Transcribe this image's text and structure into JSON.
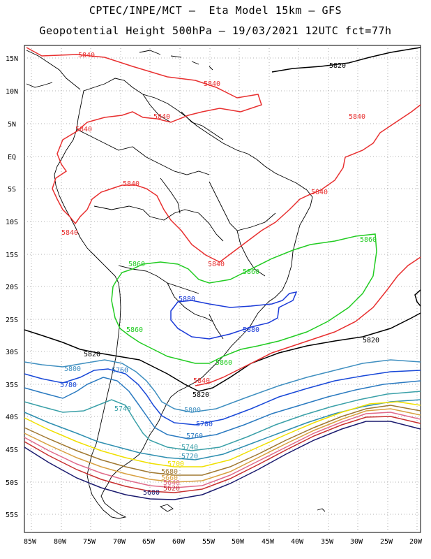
{
  "title_line1": "CPTEC/INPE/MCT –  Eta Model 15km – GFS",
  "title_line2": "Geopotential Height 500hPa – 19/03/2021 12UTC fct=77h",
  "lat_labels": [
    "15N",
    "10N",
    "5N",
    "EQ",
    "5S",
    "10S",
    "15S",
    "20S",
    "25S",
    "30S",
    "35S",
    "40S",
    "45S",
    "50S",
    "55S"
  ],
  "lon_labels": [
    "85W",
    "80W",
    "75W",
    "70W",
    "65W",
    "60W",
    "55W",
    "50W",
    "45W",
    "40W",
    "35W",
    "30W",
    "25W",
    "20W"
  ],
  "contour_labels": {
    "c5840": "5840",
    "c5820": "5820",
    "c5860": "5860",
    "c5880": "5880",
    "c5800": "5800",
    "c5780": "5780",
    "c5760": "5760",
    "c5740": "5740",
    "c5720": "5720",
    "c5700": "5700",
    "c5680": "5680",
    "c5660": "5660",
    "c5640": "5640",
    "c5620": "5620",
    "c5600": "5600"
  },
  "colors": {
    "c5600": "#1a1a6e",
    "c5620": "#c83030",
    "c5640": "#e06a8a",
    "c5660": "#d8a040",
    "c5680": "#a07830",
    "c5700": "#f0e000",
    "c5720": "#2e8fb0",
    "c5740": "#3aa0a8",
    "c5760": "#2a7ac0",
    "c5780": "#1848d8",
    "c5800": "#3f8fc0",
    "c5820": "#000000",
    "c5840": "#e83030",
    "c5860": "#22cc22",
    "c5880": "#1a3ad8"
  }
}
